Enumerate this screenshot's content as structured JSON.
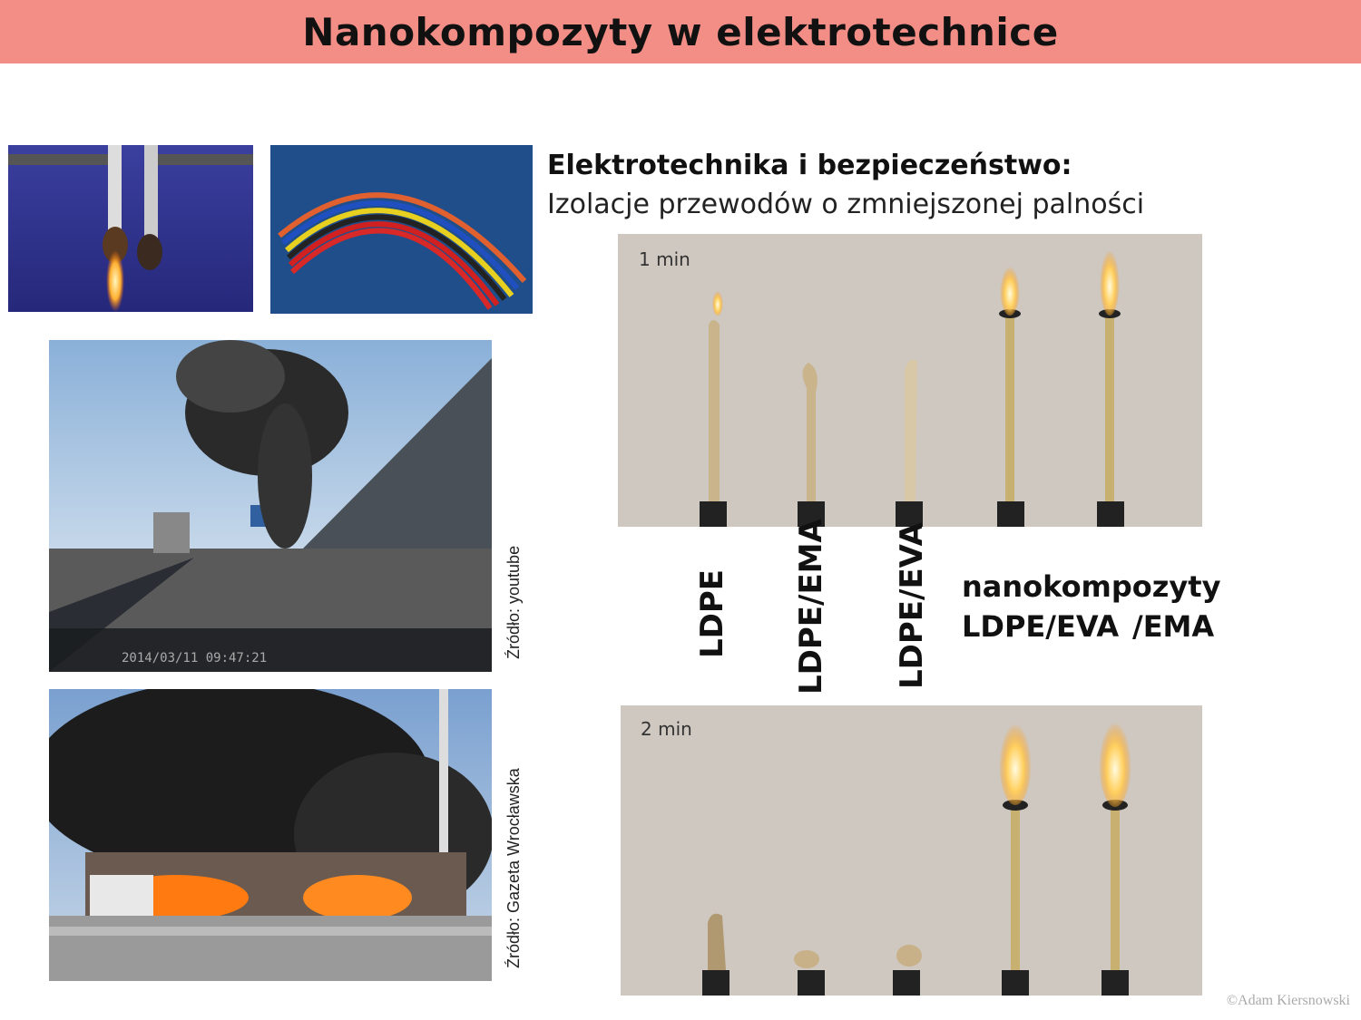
{
  "title": "Nanokompozyty w elektrotechnice",
  "heading": "Elektrotechnika i bezpieczeństwo:",
  "subheading": "Izolacje przewodów o zmniejszonej palności",
  "samples": [
    "LDPE",
    "LDPE/EMA",
    "LDPE/EVA"
  ],
  "nano": {
    "title": "nanokompozyty",
    "left": "LDPE/EVA",
    "right": "/EMA"
  },
  "time_top": "1 min",
  "time_bottom": "2 min",
  "dashcam_timestamp": "2014/03/11 09:47:21",
  "source_1": "Źródło: youtube",
  "source_2": "Źródło: Gazeta Wrocławska",
  "copyright": "©Adam Kiersnowski"
}
